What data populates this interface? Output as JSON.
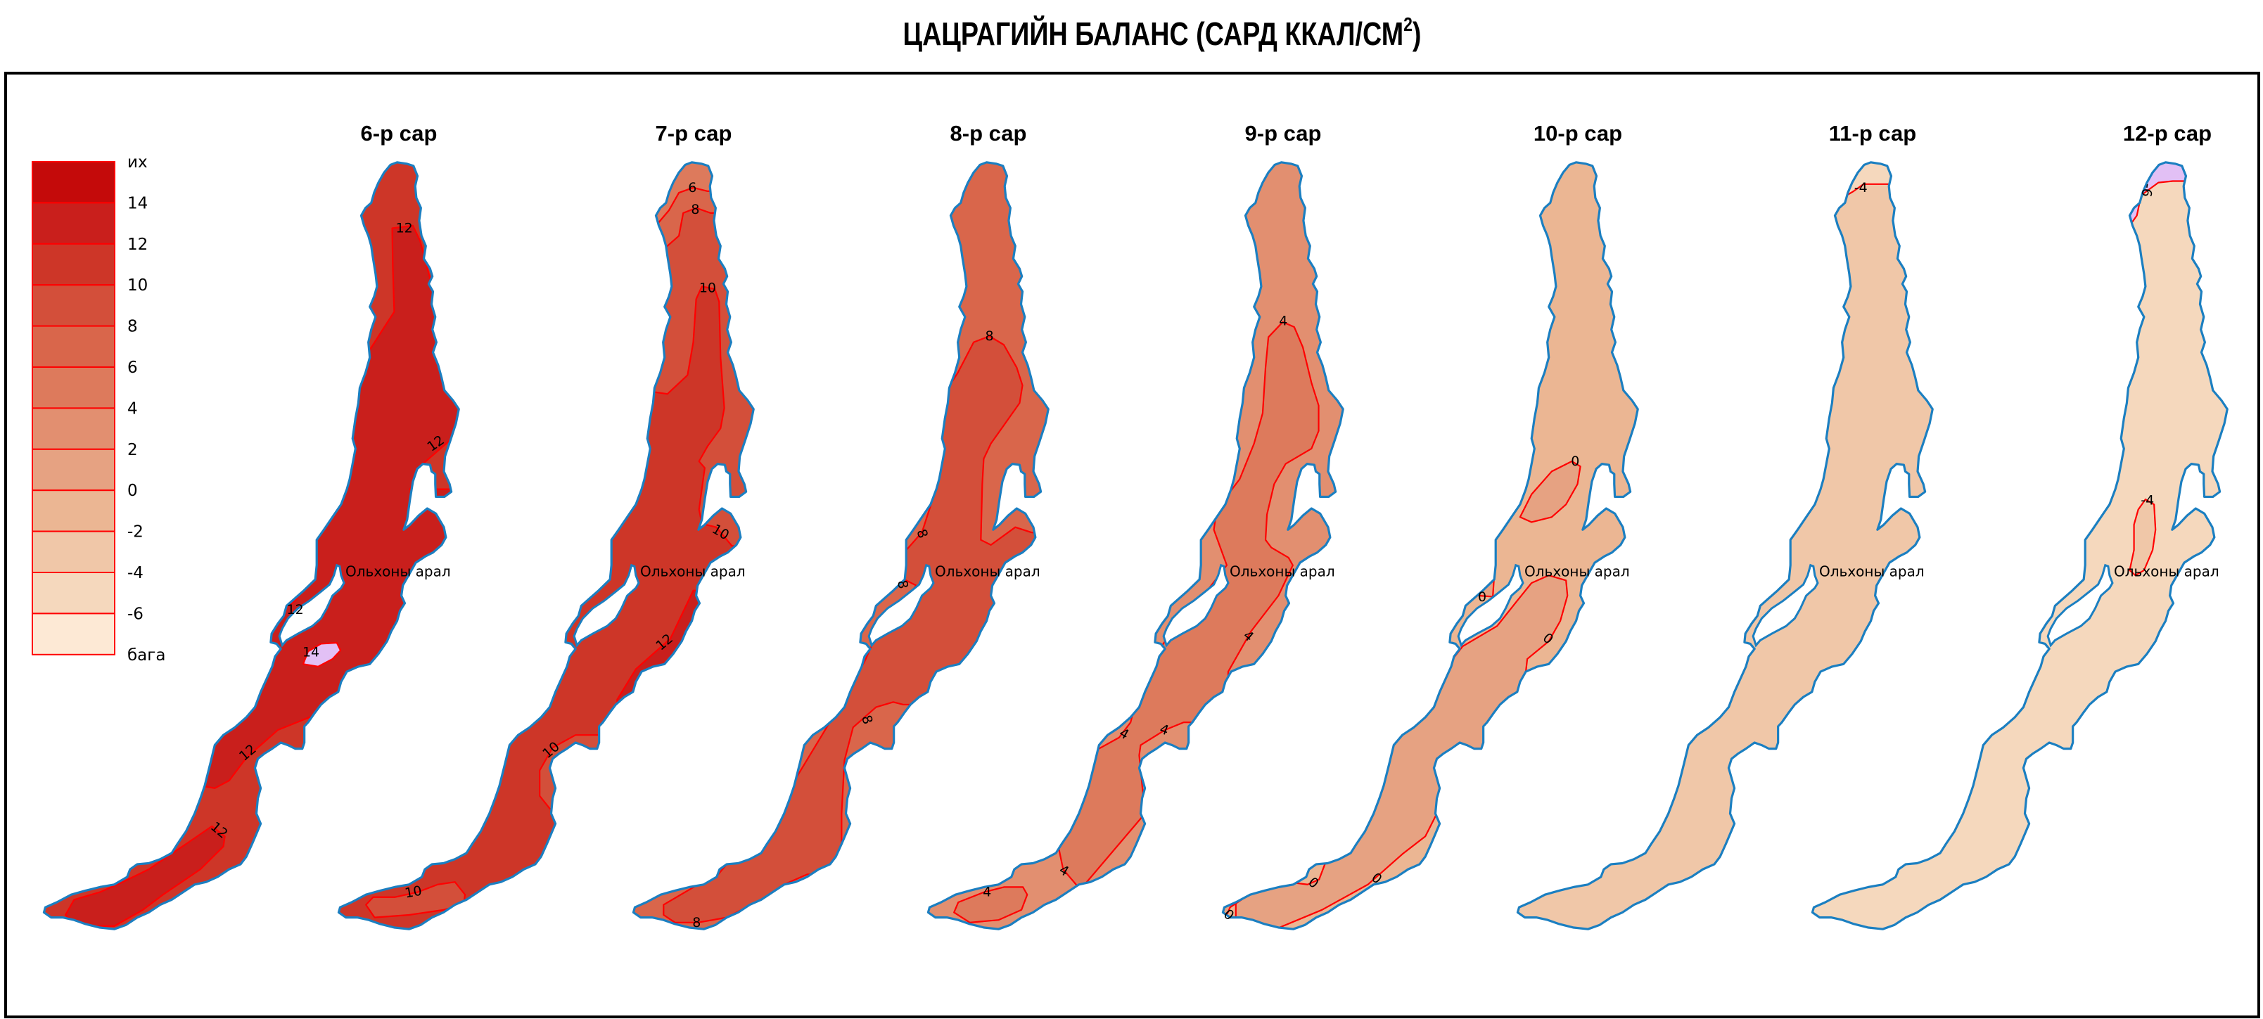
{
  "title": {
    "main": "ЦАЦРАГИЙН БАЛАНС (САРД ККАЛ/СМ",
    "sup": "2",
    "close": ")"
  },
  "legend": {
    "labels": [
      "их",
      "14",
      "12",
      "10",
      "8",
      "6",
      "4",
      "2",
      "0",
      "-2",
      "-4",
      "-6",
      "бага"
    ],
    "colors": [
      "#c40a0a",
      "#c91f1c",
      "#cd3628",
      "#d34f3a",
      "#d9664b",
      "#dd7a5c",
      "#e28f70",
      "#e6a282",
      "#ebb693",
      "#f0c7a8",
      "#f5d8bd",
      "#fde9d5"
    ],
    "border_color": "#ff0000"
  },
  "island_label": "Ольхоны арал",
  "colors": {
    "shoreline": "#1b7fc1",
    "contour": "#ff0000",
    "out_of_range": "#e2c0f5"
  },
  "panels": [
    {
      "title": "6-р сар",
      "base_color": "#cd3628",
      "zone_colors": [
        "#c91f1c",
        "#c91f1c",
        "#e2c0f5"
      ],
      "contour_labels": [
        "12",
        "12",
        "12",
        "12",
        "12",
        "14"
      ]
    },
    {
      "title": "7-р сар",
      "base_color": "#d34f3a",
      "zone_colors": [
        "#d9664b",
        "#dd7a5c",
        "#cd3628",
        "#c91f1c",
        "#d34f3a"
      ],
      "contour_labels": [
        "6",
        "8",
        "10",
        "10",
        "12",
        "10",
        "10"
      ]
    },
    {
      "title": "8-р сар",
      "base_color": "#d9664b",
      "zone_colors": [
        "#d34f3a"
      ],
      "contour_labels": [
        "8",
        "8",
        "8",
        "8",
        "8"
      ]
    },
    {
      "title": "9-р сар",
      "base_color": "#e28f70",
      "zone_colors": [
        "#dd7a5c",
        "#dd7a5c"
      ],
      "contour_labels": [
        "4",
        "4",
        "4",
        "4",
        "4",
        "4"
      ]
    },
    {
      "title": "10-р сар",
      "base_color": "#ebb693",
      "zone_colors": [
        "#e6a282",
        "#e6a282",
        "#e6a282",
        "#e6a282"
      ],
      "contour_labels": [
        "0",
        "0",
        "0",
        "0",
        "0",
        "0"
      ]
    },
    {
      "title": "11-р сар",
      "base_color": "#f0c7a8",
      "zone_colors": [
        "#f5d8bd"
      ],
      "contour_labels": [
        "-4"
      ]
    },
    {
      "title": "12-р сар",
      "base_color": "#f5d8bd",
      "zone_colors": [
        "#e2c0f5",
        "#f0c7a8"
      ],
      "contour_labels": [
        "-6",
        "-4"
      ]
    }
  ]
}
